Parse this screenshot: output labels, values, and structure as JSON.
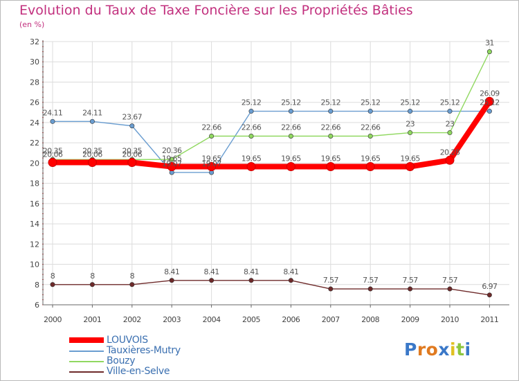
{
  "title": "Evolution du Taux de Taxe Foncière sur les Propriétés Bâties",
  "unit_label": "(en %)",
  "logo_text": "Proxiti",
  "chart_data": {
    "type": "line",
    "title": "Evolution du Taux de Taxe Foncière sur les Propriétés Bâties",
    "ylabel": "(en %)",
    "xlabel": "",
    "x": [
      "2000",
      "2001",
      "2002",
      "2003",
      "2004",
      "2005",
      "2006",
      "2007",
      "2008",
      "2009",
      "2010",
      "2011"
    ],
    "ylim": [
      6,
      32
    ],
    "yticks": [
      6,
      8,
      10,
      12,
      14,
      16,
      18,
      20,
      22,
      24,
      26,
      28,
      30,
      32
    ],
    "grid": true,
    "legend_position": "bottom-left",
    "series": [
      {
        "name": "LOUVOIS",
        "color": "#ff0000",
        "emphasis": true,
        "values": [
          20.06,
          20.06,
          20.06,
          19.65,
          19.65,
          19.65,
          19.65,
          19.65,
          19.65,
          19.65,
          20.28,
          26.09
        ],
        "labels": [
          "20.06",
          "20.06",
          "20.06",
          "19.65",
          "19.65",
          "19.65",
          "19.65",
          "19.65",
          "19.65",
          "19.65",
          "20.28",
          "26.09"
        ]
      },
      {
        "name": "Tauxières-Mutry",
        "color": "#6a9dd0",
        "values": [
          24.11,
          24.11,
          23.67,
          19.07,
          19.07,
          25.12,
          25.12,
          25.12,
          25.12,
          25.12,
          25.12,
          25.12
        ],
        "labels": [
          "24.11",
          "24.11",
          "23.67",
          "19.07",
          "19.07",
          "25.12",
          "25.12",
          "25.12",
          "25.12",
          "25.12",
          "25.12",
          "25.12"
        ]
      },
      {
        "name": "Bouzy",
        "color": "#90d860",
        "values": [
          20.35,
          20.35,
          20.35,
          20.36,
          22.66,
          22.66,
          22.66,
          22.66,
          22.66,
          23,
          23,
          31
        ],
        "labels": [
          "20.35",
          "20.35",
          "20.35",
          "20.36",
          "22.66",
          "22.66",
          "22.66",
          "22.66",
          "22.66",
          "23",
          "23",
          "31"
        ]
      },
      {
        "name": "Ville-en-Selve",
        "color": "#6e2a2a",
        "values": [
          8,
          8,
          8,
          8.41,
          8.41,
          8.41,
          8.41,
          7.57,
          7.57,
          7.57,
          7.57,
          6.97
        ],
        "labels": [
          "8",
          "8",
          "8",
          "8.41",
          "8.41",
          "8.41",
          "8.41",
          "7.57",
          "7.57",
          "7.57",
          "7.57",
          "6.97"
        ]
      }
    ]
  }
}
